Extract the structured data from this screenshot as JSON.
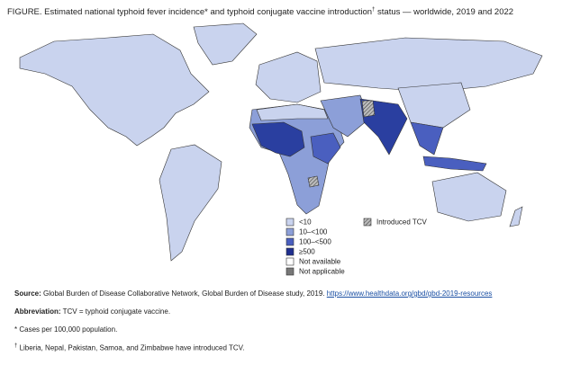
{
  "header": {
    "title": "FIGURE. Estimated national typhoid fever incidence* and typhoid conjugate vaccine introduction",
    "title_mark": "†",
    "title_rest": "status — worldwide, 2019 and 2022"
  },
  "legend": {
    "items": [
      {
        "label": "<10",
        "color": "#c9d3ee"
      },
      {
        "label": "10–<100",
        "color": "#8c9fd8"
      },
      {
        "label": "100–<500",
        "color": "#4a5fbf"
      },
      {
        "label": "≥500",
        "color": "#1f2f8f"
      },
      {
        "label": "Not available",
        "color": "#ffffff"
      },
      {
        "label": "Not applicable",
        "color": "#777777"
      }
    ],
    "tcv_label": "Introduced TCV"
  },
  "notes": {
    "source_label": "Source:",
    "source_text": "Global Burden of Disease Collaborative Network, Global Burden of Disease study, 2019.",
    "source_link": "https://www.healthdata.org/gbd/gbd-2019-resources",
    "abbreviation_label": "Abbreviation:",
    "abbreviation_text": "TCV = typhoid conjugate vaccine.",
    "footnote_1": "* Cases per 100,000 population.",
    "footnote_2_mark": "†",
    "footnote_2": "Liberia, Nepal, Pakistan, Samoa, and Zimbabwe have introduced TCV."
  }
}
